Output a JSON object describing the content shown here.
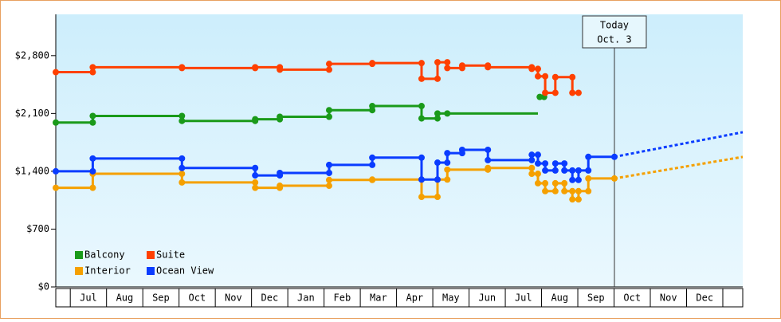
{
  "chart_data": {
    "type": "step-line",
    "xlim": [
      -0.4,
      18.55
    ],
    "ylim": [
      0,
      3300
    ],
    "yticks": [
      {
        "value": 0,
        "label": "$0"
      },
      {
        "value": 700,
        "label": "$700"
      },
      {
        "value": 1400,
        "label": "$1,400"
      },
      {
        "value": 2100,
        "label": "$2,100"
      },
      {
        "value": 2800,
        "label": "$2,800"
      }
    ],
    "xticks": [
      {
        "value": 0.5,
        "label": "Jul"
      },
      {
        "value": 1.5,
        "label": "Aug"
      },
      {
        "value": 2.5,
        "label": "Sep"
      },
      {
        "value": 3.5,
        "label": "Oct"
      },
      {
        "value": 4.5,
        "label": "Nov"
      },
      {
        "value": 5.5,
        "label": "Dec"
      },
      {
        "value": 6.5,
        "label": "Jan"
      },
      {
        "value": 7.5,
        "label": "Feb"
      },
      {
        "value": 8.5,
        "label": "Mar"
      },
      {
        "value": 9.5,
        "label": "Apr"
      },
      {
        "value": 10.5,
        "label": "May"
      },
      {
        "value": 11.5,
        "label": "Jun"
      },
      {
        "value": 12.5,
        "label": "Jul"
      },
      {
        "value": 13.5,
        "label": "Aug"
      },
      {
        "value": 14.5,
        "label": "Sep"
      },
      {
        "value": 15.5,
        "label": "Oct"
      },
      {
        "value": 16.5,
        "label": "Nov"
      },
      {
        "value": 17.5,
        "label": "Dec"
      }
    ],
    "annotation": {
      "x": 15.01,
      "lines": [
        "Today",
        "Oct. 3"
      ]
    },
    "legend": "lower left",
    "series": [
      {
        "name": "Balcony",
        "color": "#1a9a1a",
        "x": [
          -0.4,
          0.62,
          3.08,
          5.1,
          5.78,
          7.14,
          8.33,
          9.69,
          10.13,
          10.4,
          12.9,
          12.95,
          13.07
        ],
        "values": [
          1990,
          2070,
          2010,
          2030,
          2060,
          2140,
          2190,
          2040,
          2100,
          2100,
          null,
          2300,
          2300
        ]
      },
      {
        "name": "Suite",
        "color": "#ff4000",
        "x": [
          -0.4,
          0.62,
          3.08,
          5.1,
          5.78,
          7.14,
          8.33,
          9.69,
          10.13,
          10.4,
          10.81,
          11.52,
          12.73,
          12.9,
          13.1,
          13.38,
          13.85,
          14.02
        ],
        "values": [
          2600,
          2660,
          2650,
          2660,
          2630,
          2700,
          2710,
          2520,
          2720,
          2650,
          2680,
          2660,
          2640,
          2550,
          2350,
          2540,
          2350,
          2350
        ]
      },
      {
        "name": "Interior",
        "color": "#f5a000",
        "x": [
          -0.4,
          0.62,
          3.08,
          5.1,
          5.78,
          7.14,
          8.33,
          9.69,
          10.13,
          10.4,
          11.52,
          12.73,
          12.9,
          13.1,
          13.38,
          13.63,
          13.85,
          14.02,
          14.29,
          15.01
        ],
        "values": [
          1200,
          1370,
          1265,
          1200,
          1225,
          1295,
          1300,
          1090,
          1300,
          1420,
          1440,
          1370,
          1255,
          1160,
          1255,
          1160,
          1060,
          1160,
          1313,
          1313
        ],
        "projection": {
          "x": [
            15.01,
            18.55
          ],
          "values": [
            1313,
            1574
          ]
        }
      },
      {
        "name": "Ocean View",
        "color": "#0a3cff",
        "x": [
          -0.4,
          0.62,
          3.08,
          5.1,
          5.78,
          7.14,
          8.33,
          9.69,
          10.13,
          10.4,
          10.81,
          11.52,
          12.73,
          12.9,
          13.1,
          13.38,
          13.63,
          13.85,
          14.02,
          14.29,
          15.01
        ],
        "values": [
          1400,
          1555,
          1440,
          1350,
          1380,
          1477,
          1565,
          1300,
          1505,
          1620,
          1660,
          1535,
          1600,
          1495,
          1410,
          1495,
          1410,
          1295,
          1410,
          1575,
          1575
        ],
        "projection": {
          "x": [
            15.01,
            18.55
          ],
          "values": [
            1575,
            1873
          ]
        }
      }
    ]
  }
}
